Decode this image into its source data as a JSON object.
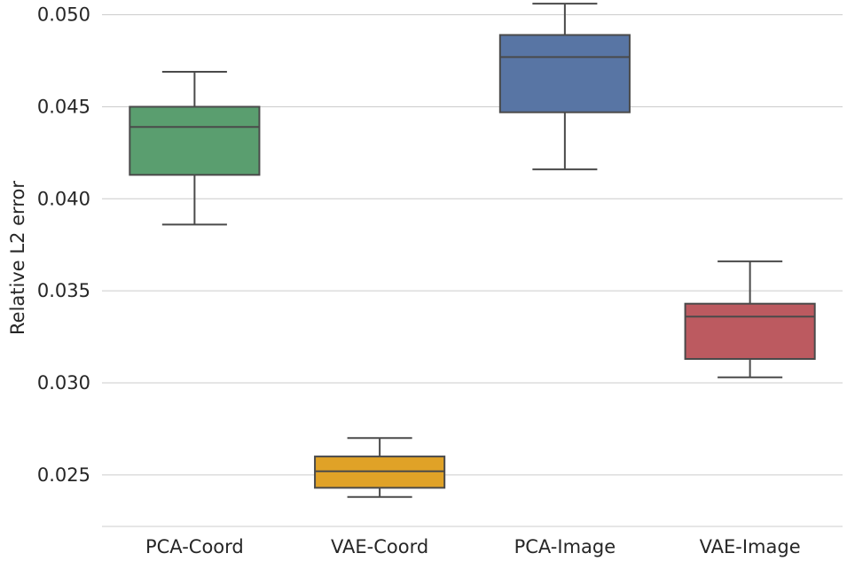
{
  "chart_data": {
    "type": "box",
    "title": "",
    "xlabel": "",
    "ylabel": "Relative L2 error",
    "ylim": [
      0.0222,
      0.0508
    ],
    "yticks": [
      0.025,
      0.03,
      0.035,
      0.04,
      0.045,
      0.05
    ],
    "ytick_labels": [
      "0.025",
      "0.030",
      "0.035",
      "0.040",
      "0.045",
      "0.050"
    ],
    "grid": true,
    "categories": [
      "PCA-Coord",
      "VAE-Coord",
      "PCA-Image",
      "VAE-Image"
    ],
    "boxes": [
      {
        "name": "PCA-Coord",
        "whisker_low": 0.0386,
        "q1": 0.0413,
        "median": 0.0439,
        "q3": 0.045,
        "whisker_high": 0.0469,
        "color": "#5a9e6f"
      },
      {
        "name": "VAE-Coord",
        "whisker_low": 0.0238,
        "q1": 0.0243,
        "median": 0.0252,
        "q3": 0.026,
        "whisker_high": 0.027,
        "color": "#e0a227"
      },
      {
        "name": "PCA-Image",
        "whisker_low": 0.0416,
        "q1": 0.0447,
        "median": 0.0477,
        "q3": 0.0489,
        "whisker_high": 0.0506,
        "color": "#5875a4"
      },
      {
        "name": "VAE-Image",
        "whisker_low": 0.0303,
        "q1": 0.0313,
        "median": 0.0336,
        "q3": 0.0343,
        "whisker_high": 0.0366,
        "color": "#bc5a60"
      }
    ]
  }
}
